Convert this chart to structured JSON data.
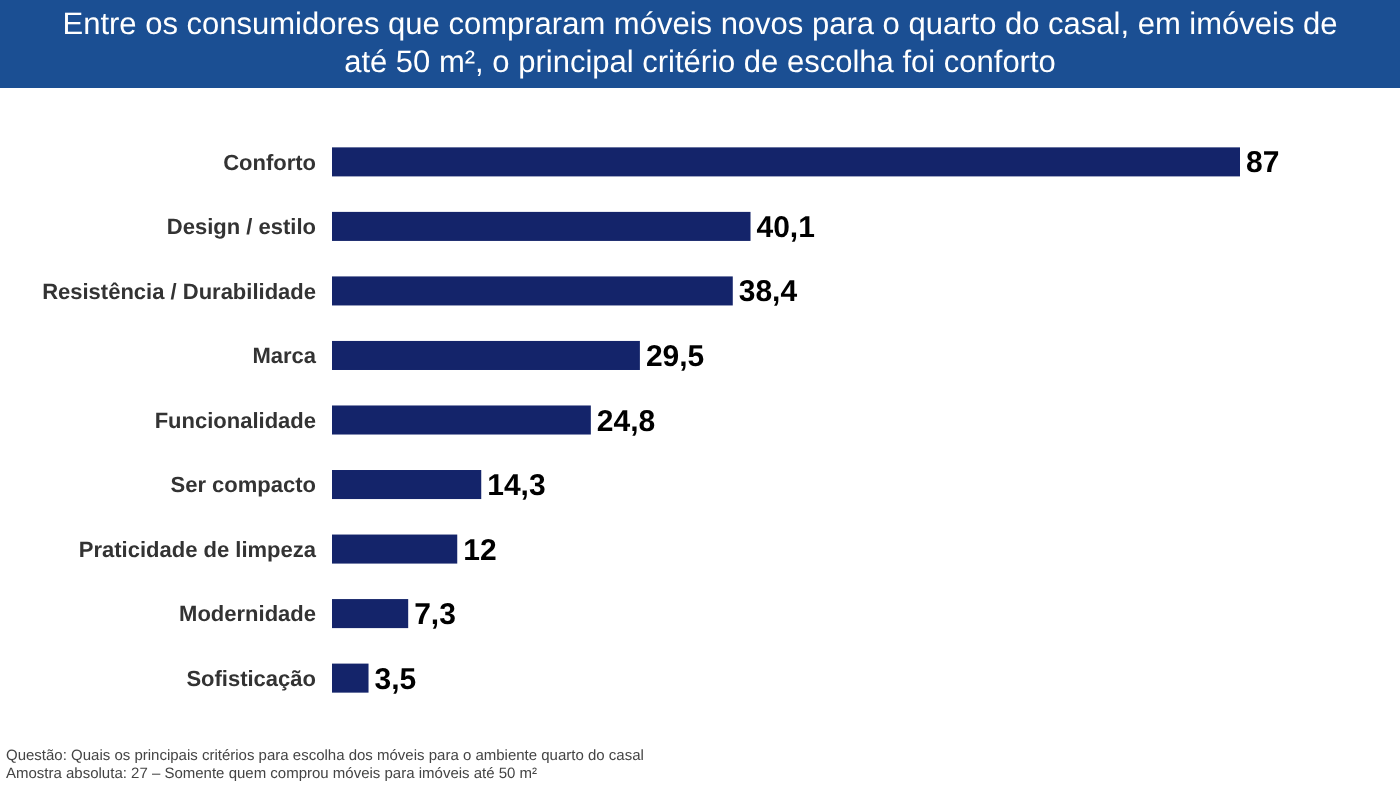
{
  "chart_data": {
    "type": "bar",
    "orientation": "horizontal",
    "title": "Entre os consumidores que compraram móveis novos para o quarto do casal, em imóveis de até 50 m², o principal critério de escolha foi conforto",
    "categories": [
      "Conforto",
      "Design / estilo",
      "Resistência / Durabilidade",
      "Marca",
      "Funcionalidade",
      "Ser compacto",
      "Praticidade de limpeza",
      "Modernidade",
      "Sofisticação"
    ],
    "values": [
      87,
      40.1,
      38.4,
      29.5,
      24.8,
      14.3,
      12,
      7.3,
      3.5
    ],
    "value_labels": [
      "87",
      "40,1",
      "38,4",
      "29,5",
      "24,8",
      "14,3",
      "12",
      "7,3",
      "3,5"
    ],
    "color": "#14246a",
    "annotations": [
      "Questão: Quais os principais critérios para escolha dos móveis para o ambiente quarto do casal",
      "Amostra absoluta: 27 – Somente quem comprou móveis para imóveis até 50 m²"
    ]
  }
}
